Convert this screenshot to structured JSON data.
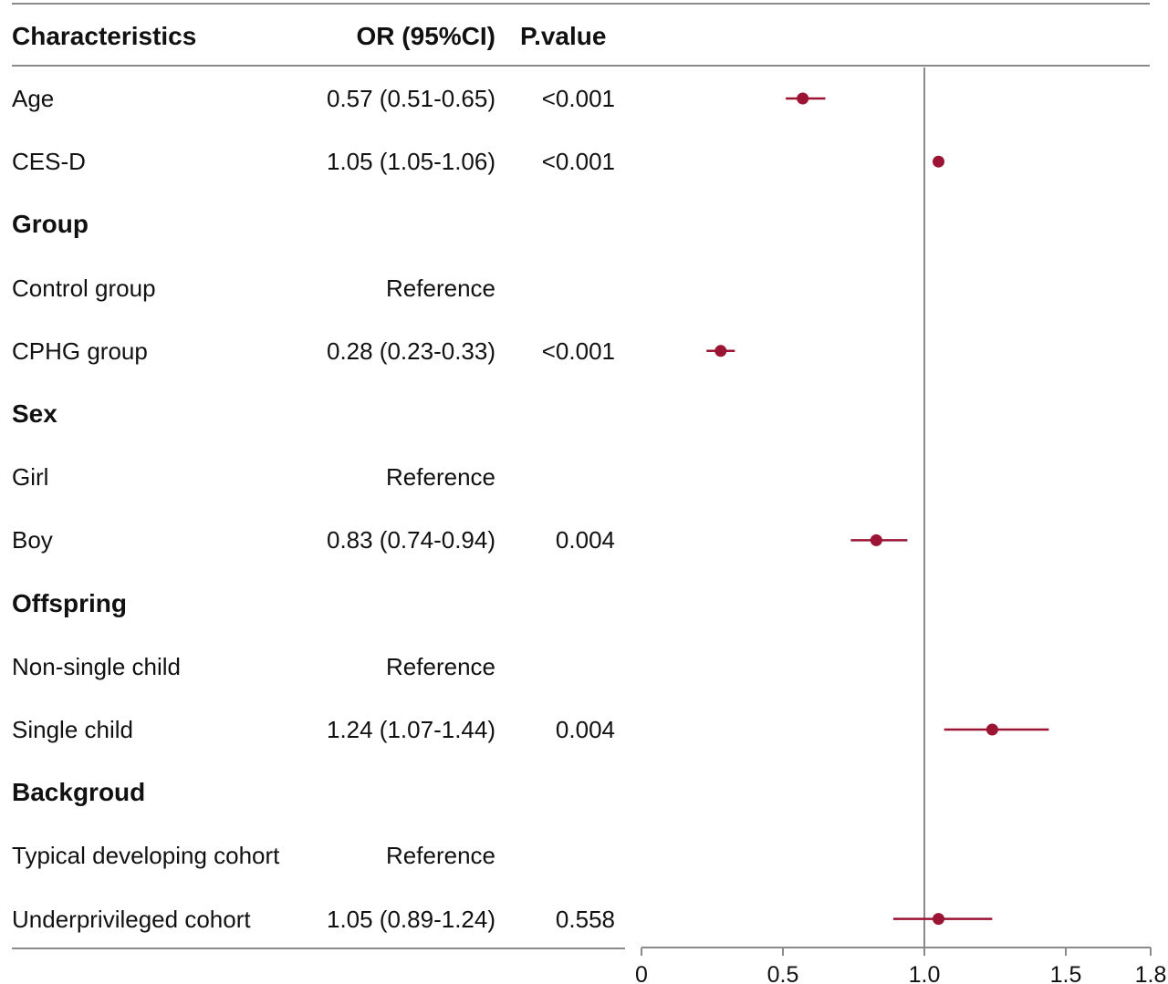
{
  "header": {
    "characteristics": "Characteristics",
    "or_ci": "OR (95%CI)",
    "p_value": "P.value"
  },
  "rows": [
    {
      "label": "Age",
      "or": "0.57 (0.51-0.65)",
      "p": "<0.001",
      "section": false
    },
    {
      "label": "CES-D",
      "or": "1.05 (1.05-1.06)",
      "p": "<0.001",
      "section": false
    },
    {
      "label": "Group",
      "or": "",
      "p": "",
      "section": true
    },
    {
      "label": "Control group",
      "or": "Reference",
      "p": "",
      "section": false
    },
    {
      "label": "CPHG group",
      "or": "0.28 (0.23-0.33)",
      "p": "<0.001",
      "section": false
    },
    {
      "label": "Sex",
      "or": "",
      "p": "",
      "section": true
    },
    {
      "label": "Girl",
      "or": "Reference",
      "p": "",
      "section": false
    },
    {
      "label": "Boy",
      "or": "0.83 (0.74-0.94)",
      "p": "0.004",
      "section": false
    },
    {
      "label": "Offspring",
      "or": "",
      "p": "",
      "section": true
    },
    {
      "label": "Non-single child",
      "or": "Reference",
      "p": "",
      "section": false
    },
    {
      "label": "Single child",
      "or": "1.24 (1.07-1.44)",
      "p": "0.004",
      "section": false
    },
    {
      "label": "Backgroud",
      "or": "",
      "p": "",
      "section": true
    },
    {
      "label": "Typical developing cohort",
      "or": "Reference",
      "p": "",
      "section": false
    },
    {
      "label": "Underprivileged cohort",
      "or": "1.05 (0.89-1.24)",
      "p": "0.558",
      "section": false
    }
  ],
  "chart_data": {
    "type": "scatter",
    "title": "",
    "xlabel": "",
    "ylabel": "",
    "xlim": [
      0,
      1.8
    ],
    "xticks": [
      "0",
      "0.5",
      "1.0",
      "1.5",
      "1.8"
    ],
    "tick_values": [
      0,
      0.5,
      1.0,
      1.5,
      1.8
    ],
    "reference_line": 1.0,
    "color": "#9b1434",
    "axis_color": "#8a8a8a",
    "points": [
      {
        "row": 0,
        "label": "Age",
        "or": 0.57,
        "lo": 0.51,
        "hi": 0.65
      },
      {
        "row": 1,
        "label": "CES-D",
        "or": 1.05,
        "lo": 1.05,
        "hi": 1.06
      },
      {
        "row": 4,
        "label": "CPHG group",
        "or": 0.28,
        "lo": 0.23,
        "hi": 0.33
      },
      {
        "row": 7,
        "label": "Boy",
        "or": 0.83,
        "lo": 0.74,
        "hi": 0.94
      },
      {
        "row": 10,
        "label": "Single child",
        "or": 1.24,
        "lo": 1.07,
        "hi": 1.44
      },
      {
        "row": 13,
        "label": "Underprivileged cohort",
        "or": 1.05,
        "lo": 0.89,
        "hi": 1.24
      }
    ]
  }
}
